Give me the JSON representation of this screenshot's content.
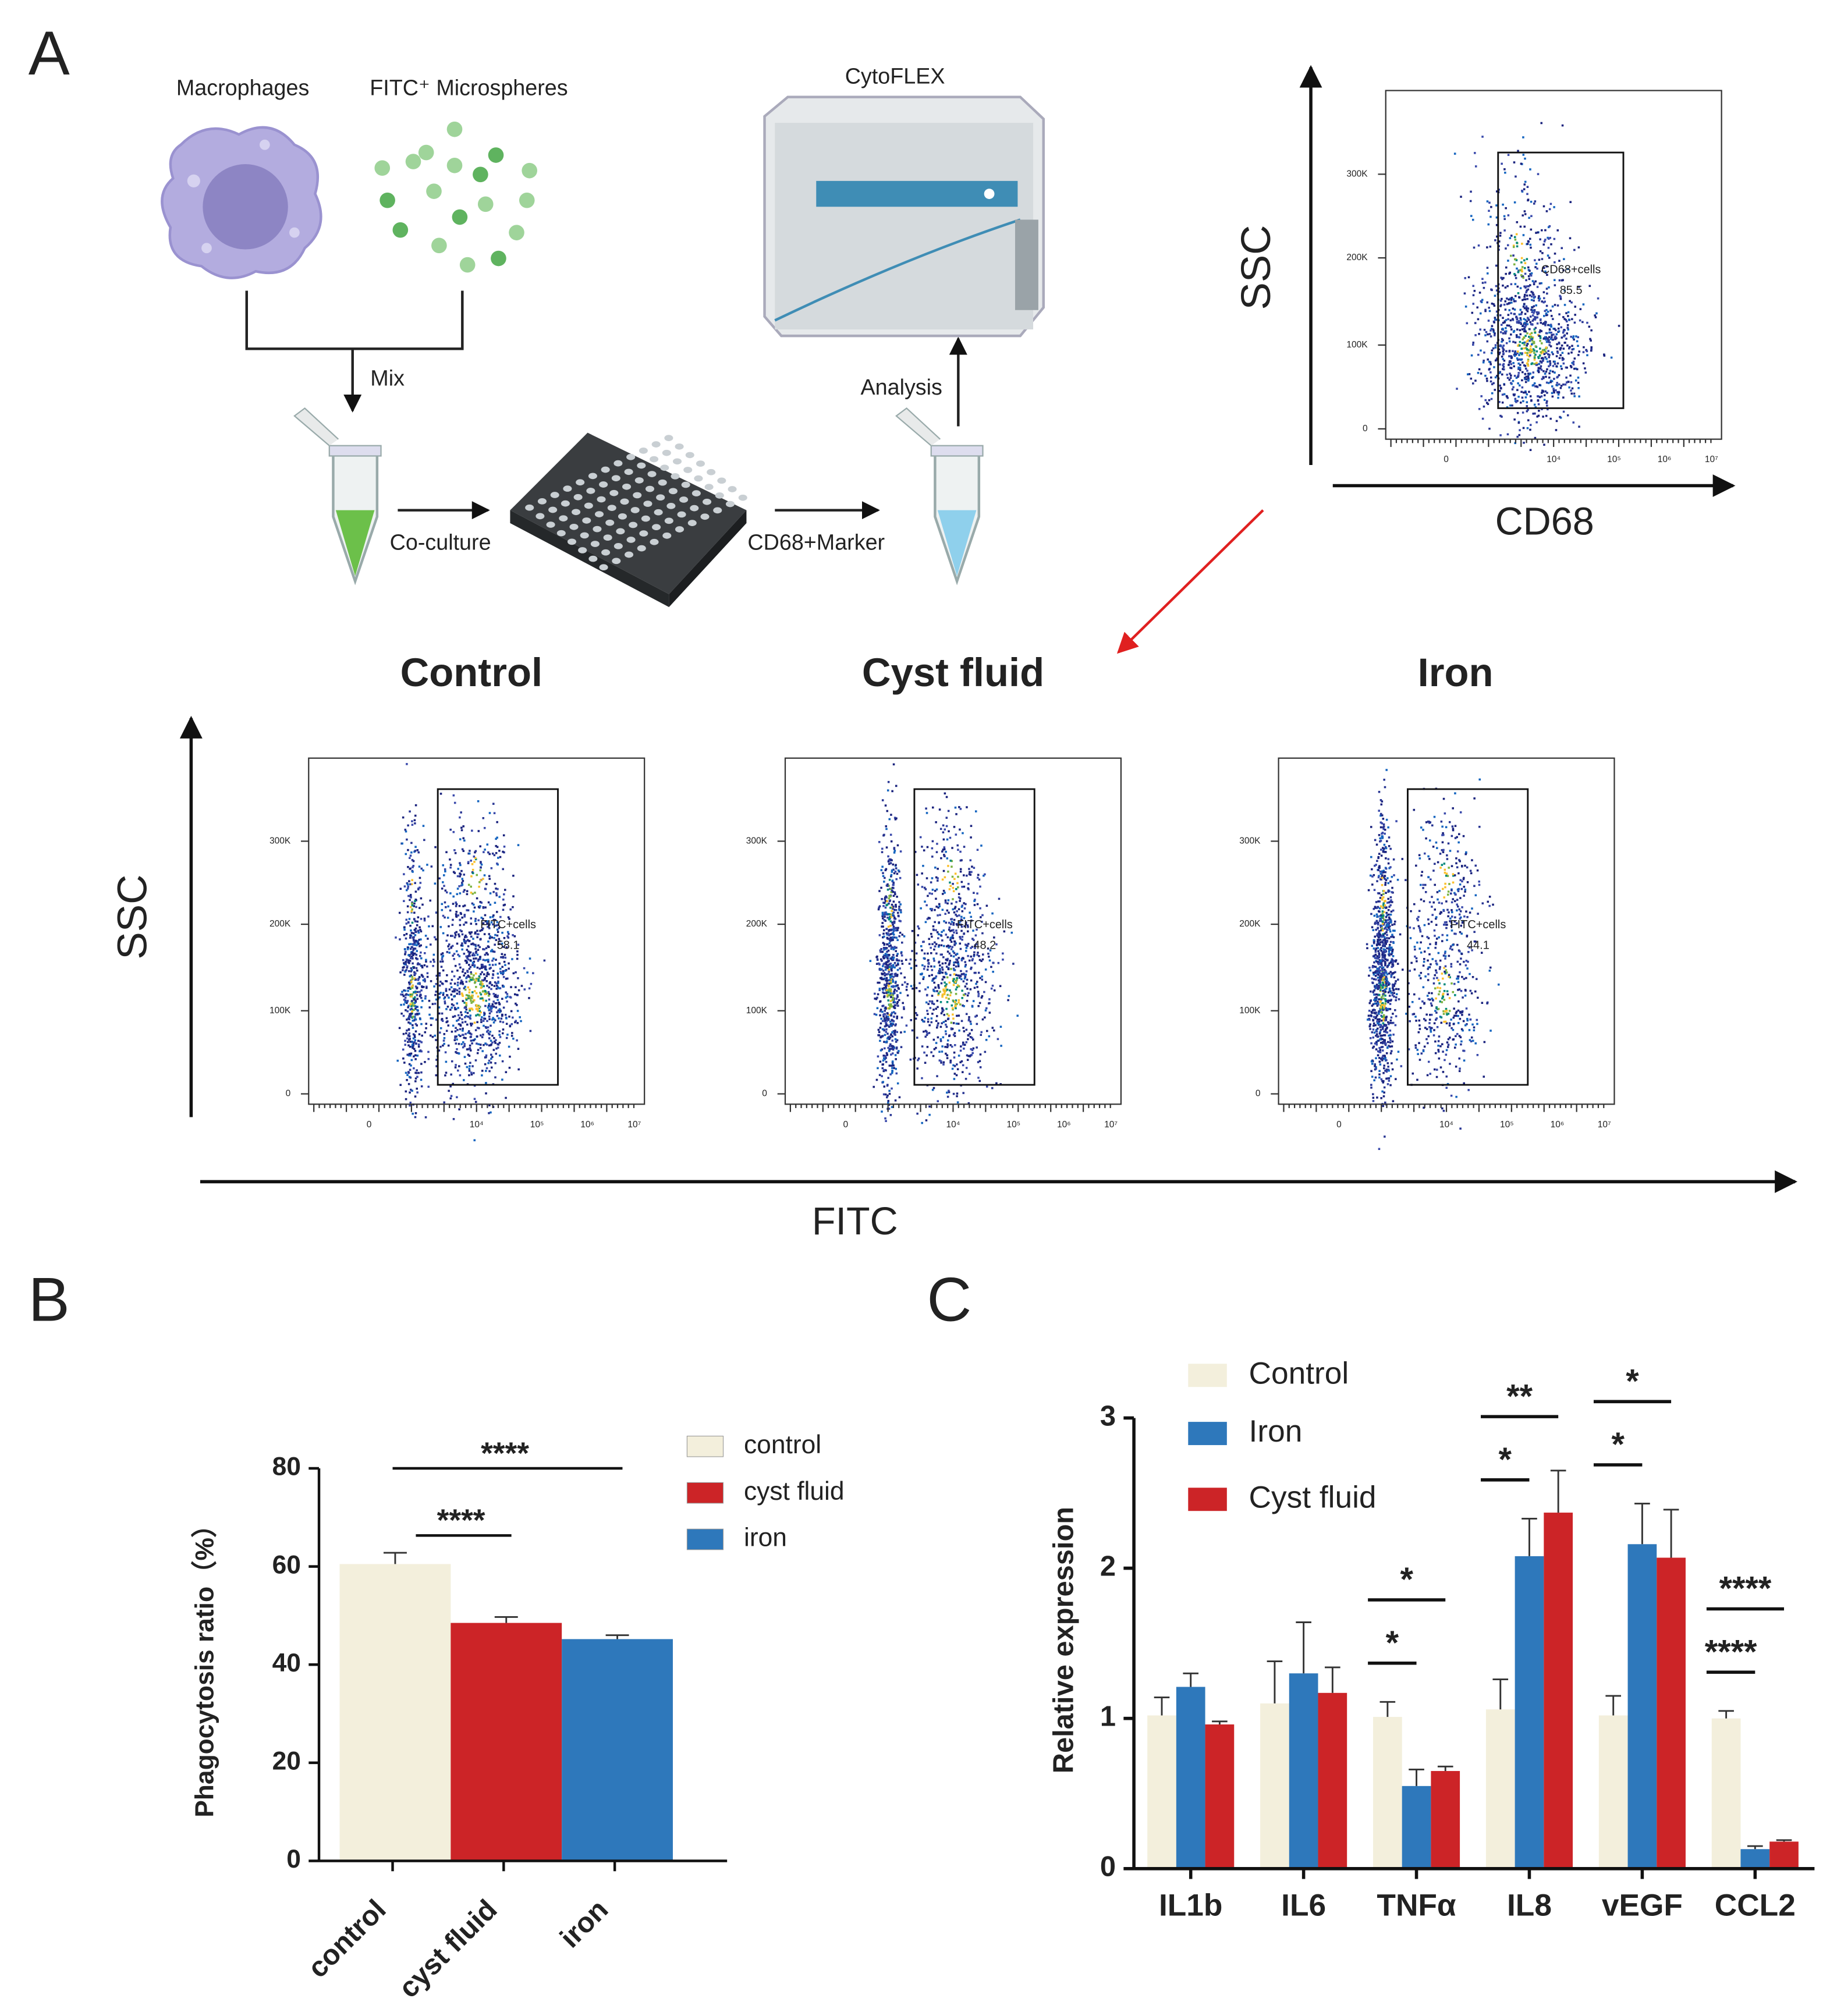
{
  "panel_labels": [
    "A",
    "B",
    "C"
  ],
  "panel_a": {
    "macrophages": "Macrophages",
    "microspheres": "FITC⁺ Microspheres",
    "instrument": "CytoFLEX",
    "mix": "Mix",
    "coculture": "Co-culture",
    "marker": "CD68+Marker",
    "analysis": "Analysis"
  },
  "gating_plot": {
    "y_axis": "SSC",
    "x_axis": "CD68",
    "gate": "CD68+cells",
    "gate_value": "85.5",
    "yticks": [
      "0",
      "100K",
      "200K",
      "300K"
    ],
    "xticks": [
      "0",
      "10⁴",
      "10⁵",
      "10⁶",
      "10⁷"
    ]
  },
  "fitc_plots": {
    "y_axis": "SSC",
    "x_axis": "FITC",
    "yticks": [
      "0",
      "100K",
      "200K",
      "300K"
    ],
    "xticks": [
      "0",
      "10⁴",
      "10⁵",
      "10⁶",
      "10⁷"
    ],
    "panels": [
      {
        "title": "Control",
        "gate": "FITC+cells",
        "gate_value": "58.1"
      },
      {
        "title": "Cyst fluid",
        "gate": "FITC+cells",
        "gate_value": "48.2"
      },
      {
        "title": "Iron",
        "gate": "FITC+cells",
        "gate_value": "44.1"
      }
    ]
  },
  "chart_data": [
    {
      "type": "bar",
      "y_label": "Phagocytosis ratio（%）",
      "categories": [
        "control",
        "cyst fluid",
        "iron"
      ],
      "values": [
        60.5,
        48.5,
        45.2
      ],
      "errors": [
        2.3,
        1.2,
        0.8
      ],
      "colors": [
        "#f3efdc",
        "#cc2427",
        "#2e78bb"
      ],
      "ylim": [
        0,
        80
      ],
      "yticks": [
        0,
        20,
        40,
        60,
        80
      ],
      "legend": "upper right",
      "annotations": [
        {
          "text": "****",
          "from": 0,
          "to": 2
        },
        {
          "text": "****",
          "from": 0,
          "to": 1
        }
      ]
    },
    {
      "type": "grouped_bar",
      "y_label": "Relative expression",
      "categories": [
        "IL1b",
        "IL6",
        "TNFα",
        "IL8",
        "vEGF",
        "CCL2"
      ],
      "ylim": [
        0,
        3
      ],
      "yticks": [
        0,
        1,
        2,
        3
      ],
      "legend": "upper left",
      "series": [
        {
          "name": "Control",
          "color": "#f3efdc",
          "values": [
            1.02,
            1.1,
            1.01,
            1.06,
            1.02,
            1.0
          ],
          "errors": [
            0.12,
            0.28,
            0.1,
            0.2,
            0.13,
            0.05
          ]
        },
        {
          "name": "Iron",
          "color": "#2e78bb",
          "values": [
            1.21,
            1.3,
            0.55,
            2.08,
            2.16,
            0.13
          ],
          "errors": [
            0.09,
            0.34,
            0.11,
            0.25,
            0.27,
            0.02
          ]
        },
        {
          "name": "Cyst fluid",
          "color": "#cc2427",
          "values": [
            0.96,
            1.17,
            0.65,
            2.37,
            2.07,
            0.18
          ],
          "errors": [
            0.02,
            0.17,
            0.03,
            0.28,
            0.32,
            0.01
          ]
        }
      ],
      "annotations": [
        {
          "text": "*",
          "category": 2,
          "series": 1
        },
        {
          "text": "*",
          "category": 2,
          "series": 2
        },
        {
          "text": "*",
          "category": 3,
          "series": 1
        },
        {
          "text": "**",
          "category": 3,
          "series": 2
        },
        {
          "text": "*",
          "category": 4,
          "series": 1
        },
        {
          "text": "*",
          "category": 4,
          "series": 2
        },
        {
          "text": "****",
          "category": 5,
          "series": 1
        },
        {
          "text": "****",
          "category": 5,
          "series": 2
        }
      ]
    }
  ]
}
